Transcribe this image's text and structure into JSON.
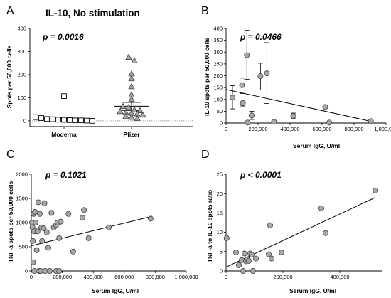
{
  "chart_data": [
    {
      "panel": "A",
      "type": "scatter",
      "title": "IL-10, No stimulation",
      "pvalue": "p = 0.0016",
      "ylabel": "Spots per 50,000 cells",
      "xlabel": "",
      "ylim": [
        -25,
        400
      ],
      "yticks": [
        "0",
        "100",
        "200",
        "300",
        "400"
      ],
      "categories": [
        "Moderna",
        "Pfizer"
      ],
      "series": [
        {
          "category": "Moderna",
          "marker": "square",
          "values": [
            107,
            16,
            12,
            8,
            7,
            5,
            4,
            3,
            2,
            2,
            1,
            0
          ],
          "mean": 10
        },
        {
          "category": "Pfizer",
          "marker": "triangle",
          "values": [
            275,
            260,
            203,
            182,
            148,
            112,
            93,
            62,
            58,
            47,
            44,
            40,
            36,
            33,
            30,
            25,
            20,
            15,
            10
          ],
          "mean": 63,
          "error": [
            45,
            80
          ]
        }
      ],
      "grid": false
    },
    {
      "panel": "B",
      "type": "scatter",
      "pvalue": "p = 0.0466",
      "ylabel": "IL-10 spots per 50,000 cells",
      "xlabel": "Serum IgG, U/ml",
      "xlim": [
        0,
        1000000
      ],
      "ylim": [
        0,
        400
      ],
      "xticks": [
        "0",
        "200,000",
        "400,000",
        "600,000",
        "800,000",
        "1,000,000"
      ],
      "yticks": [
        "0",
        "50",
        "100",
        "150",
        "200",
        "250",
        "300",
        "350",
        "400"
      ],
      "points": [
        {
          "x": 40000,
          "y": 108,
          "lo": 60,
          "hi": 158
        },
        {
          "x": 100000,
          "y": 160,
          "lo": 125,
          "hi": 190
        },
        {
          "x": 105000,
          "y": 85,
          "lo": 72,
          "hi": 98
        },
        {
          "x": 130000,
          "y": 287,
          "lo": 185,
          "hi": 392
        },
        {
          "x": 135000,
          "y": 2
        },
        {
          "x": 160000,
          "y": 32,
          "lo": 15,
          "hi": 50
        },
        {
          "x": 215000,
          "y": 198,
          "lo": 140,
          "hi": 253
        },
        {
          "x": 255000,
          "y": 210,
          "lo": 83,
          "hi": 340
        },
        {
          "x": 300000,
          "y": 5
        },
        {
          "x": 420000,
          "y": 30,
          "lo": 18,
          "hi": 42
        },
        {
          "x": 620000,
          "y": 68
        },
        {
          "x": 645000,
          "y": 2
        },
        {
          "x": 905000,
          "y": 8
        }
      ],
      "trendline": {
        "x": [
          0,
          900000
        ],
        "y": [
          142,
          8
        ]
      },
      "grid": false
    },
    {
      "panel": "C",
      "type": "scatter",
      "pvalue": "p = 0.1021",
      "ylabel": "TNF-a spots per 50,000 cells",
      "xlabel": "Serum IgG, U/ml",
      "xlim": [
        0,
        1000000
      ],
      "ylim": [
        0,
        2000
      ],
      "xticks": [
        "0",
        "200,000",
        "400,000",
        "600,000",
        "800,000",
        "1,000,000"
      ],
      "yticks": [
        "0",
        "500",
        "1000",
        "1500",
        "2000"
      ],
      "points": [
        {
          "x": 5000,
          "y": 1000
        },
        {
          "x": 8000,
          "y": 900
        },
        {
          "x": 10000,
          "y": 620
        },
        {
          "x": 12000,
          "y": 180
        },
        {
          "x": 15000,
          "y": 1180
        },
        {
          "x": 18000,
          "y": 820
        },
        {
          "x": 20000,
          "y": 0
        },
        {
          "x": 25000,
          "y": 1220
        },
        {
          "x": 28000,
          "y": 1000
        },
        {
          "x": 35000,
          "y": 430
        },
        {
          "x": 40000,
          "y": 820
        },
        {
          "x": 45000,
          "y": 1420
        },
        {
          "x": 50000,
          "y": 0
        },
        {
          "x": 55000,
          "y": 1180
        },
        {
          "x": 60000,
          "y": 0
        },
        {
          "x": 65000,
          "y": 900
        },
        {
          "x": 70000,
          "y": 620
        },
        {
          "x": 80000,
          "y": 880
        },
        {
          "x": 85000,
          "y": 1400
        },
        {
          "x": 90000,
          "y": 0
        },
        {
          "x": 100000,
          "y": 800
        },
        {
          "x": 110000,
          "y": 480
        },
        {
          "x": 120000,
          "y": 0
        },
        {
          "x": 130000,
          "y": 1200
        },
        {
          "x": 145000,
          "y": 900
        },
        {
          "x": 160000,
          "y": 950
        },
        {
          "x": 170000,
          "y": 1000
        },
        {
          "x": 180000,
          "y": 680
        },
        {
          "x": 190000,
          "y": 1020
        },
        {
          "x": 240000,
          "y": 1180
        },
        {
          "x": 270000,
          "y": 400
        },
        {
          "x": 330000,
          "y": 1100
        },
        {
          "x": 340000,
          "y": 1260
        },
        {
          "x": 370000,
          "y": 680
        },
        {
          "x": 500000,
          "y": 900
        },
        {
          "x": 770000,
          "y": 1080
        },
        {
          "x": 160000,
          "y": 0
        },
        {
          "x": 180000,
          "y": 0
        }
      ],
      "trendline": {
        "x": [
          0,
          780000
        ],
        "y": [
          520,
          1130
        ]
      },
      "grid": false
    },
    {
      "panel": "D",
      "type": "scatter",
      "pvalue": "p < 0.0001",
      "ylabel": "TNF-a to  IL-10 spots ratio",
      "xlabel": "Serum IgG, U/ml",
      "xlim": [
        0,
        550000
      ],
      "ylim": [
        0,
        25
      ],
      "xticks": [
        "0",
        "200,000",
        "400,000"
      ],
      "yticks": [
        "0",
        "5",
        "10",
        "15",
        "20",
        "25"
      ],
      "points": [
        {
          "x": 2000,
          "y": 8.5
        },
        {
          "x": 35000,
          "y": 4.8
        },
        {
          "x": 45000,
          "y": 1.5
        },
        {
          "x": 55000,
          "y": 2.8
        },
        {
          "x": 60000,
          "y": 0
        },
        {
          "x": 65000,
          "y": 4.5
        },
        {
          "x": 70000,
          "y": 2.5
        },
        {
          "x": 75000,
          "y": 3.0
        },
        {
          "x": 80000,
          "y": 2.6
        },
        {
          "x": 85000,
          "y": 4.5
        },
        {
          "x": 90000,
          "y": 4.2
        },
        {
          "x": 95000,
          "y": 0
        },
        {
          "x": 105000,
          "y": 3.2
        },
        {
          "x": 150000,
          "y": 4.3
        },
        {
          "x": 155000,
          "y": 11.8
        },
        {
          "x": 160000,
          "y": 3.2
        },
        {
          "x": 195000,
          "y": 4.8
        },
        {
          "x": 335000,
          "y": 16.2
        },
        {
          "x": 350000,
          "y": 9.8
        },
        {
          "x": 525000,
          "y": 20.8
        }
      ],
      "trendline": {
        "x": [
          0,
          525000
        ],
        "y": [
          1,
          19
        ]
      },
      "grid": false
    }
  ],
  "panel_letters": [
    "A",
    "B",
    "C",
    "D"
  ],
  "colors": {
    "marker_fill": "#a6a6a6",
    "marker_stroke": "#404040",
    "line": "#000000",
    "dotted": "#808080"
  }
}
